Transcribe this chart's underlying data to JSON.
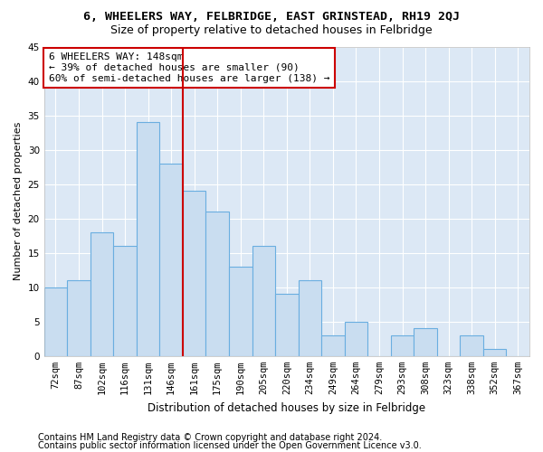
{
  "title": "6, WHEELERS WAY, FELBRIDGE, EAST GRINSTEAD, RH19 2QJ",
  "subtitle": "Size of property relative to detached houses in Felbridge",
  "xlabel": "Distribution of detached houses by size in Felbridge",
  "ylabel": "Number of detached properties",
  "categories": [
    "72sqm",
    "87sqm",
    "102sqm",
    "116sqm",
    "131sqm",
    "146sqm",
    "161sqm",
    "175sqm",
    "190sqm",
    "205sqm",
    "220sqm",
    "234sqm",
    "249sqm",
    "264sqm",
    "279sqm",
    "293sqm",
    "308sqm",
    "323sqm",
    "338sqm",
    "352sqm",
    "367sqm"
  ],
  "values": [
    10,
    11,
    18,
    16,
    34,
    28,
    24,
    21,
    13,
    16,
    9,
    11,
    3,
    5,
    0,
    3,
    4,
    0,
    3,
    1,
    0
  ],
  "bar_color": "#c9ddf0",
  "bar_edge_color": "#6aaee0",
  "highlight_color": "#cc0000",
  "annotation_text": "6 WHEELERS WAY: 148sqm\n← 39% of detached houses are smaller (90)\n60% of semi-detached houses are larger (138) →",
  "annotation_box_edge": "#cc0000",
  "ylim": [
    0,
    45
  ],
  "yticks": [
    0,
    5,
    10,
    15,
    20,
    25,
    30,
    35,
    40,
    45
  ],
  "footer_line1": "Contains HM Land Registry data © Crown copyright and database right 2024.",
  "footer_line2": "Contains public sector information licensed under the Open Government Licence v3.0.",
  "fig_bg_color": "#ffffff",
  "plot_bg_color": "#dce8f5",
  "grid_color": "#ffffff",
  "title_fontsize": 9.5,
  "subtitle_fontsize": 9,
  "xlabel_fontsize": 8.5,
  "ylabel_fontsize": 8,
  "tick_fontsize": 7.5,
  "footer_fontsize": 7,
  "annotation_fontsize": 8
}
